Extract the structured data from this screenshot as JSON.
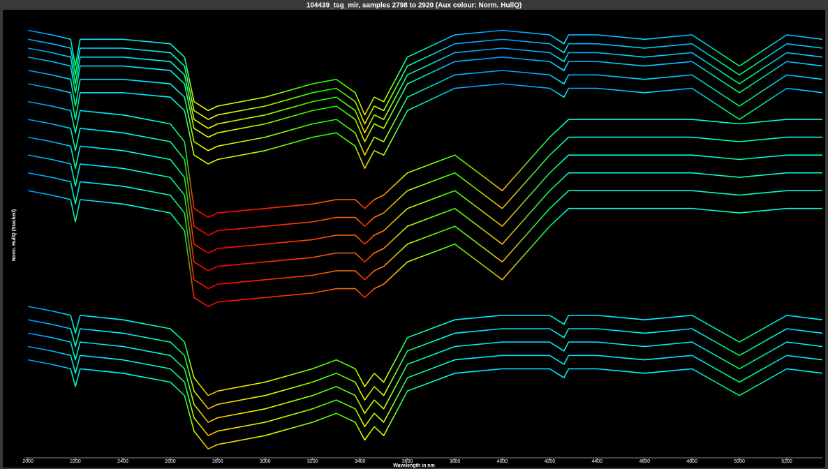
{
  "chart_data": {
    "type": "line",
    "title": "104439_tsg_mir,  samples 2798 to 2920  (Aux colour: Norm. HullQ)",
    "x_label": "Wavelength in nm",
    "y_label": "Norm. HullQ (Stacked)",
    "colormap": "jet",
    "xlim": [
      1985,
      5350
    ],
    "ylim": [
      0,
      100
    ],
    "xticks": [
      2000,
      2200,
      2400,
      2600,
      2800,
      3000,
      3200,
      3400,
      3600,
      3800,
      4000,
      4200,
      4400,
      4600,
      4800,
      5000,
      5200
    ],
    "x": [
      2000,
      2100,
      2180,
      2200,
      2220,
      2400,
      2600,
      2660,
      2700,
      2760,
      2800,
      3000,
      3200,
      3300,
      3380,
      3420,
      3460,
      3500,
      3600,
      3800,
      4000,
      4200,
      4260,
      4280,
      4400,
      4600,
      4800,
      5000,
      5200,
      5350
    ],
    "series": [
      {
        "values": [
          96,
          95,
          94,
          88,
          94,
          94,
          93,
          90,
          80,
          78,
          79,
          81,
          84,
          85,
          82,
          77,
          81,
          80,
          90,
          95,
          96,
          95,
          93,
          95,
          95,
          94,
          95,
          88,
          95,
          94
        ]
      },
      {
        "values": [
          94,
          93,
          92,
          86,
          92,
          92,
          91,
          88,
          78,
          76,
          77,
          79,
          82,
          83,
          80,
          75,
          79,
          78,
          88,
          93,
          94,
          93,
          91,
          93,
          93,
          92,
          93,
          86,
          93,
          92
        ]
      },
      {
        "values": [
          92,
          91,
          90,
          84,
          90,
          90,
          89,
          86,
          76,
          74,
          75,
          77,
          80,
          81,
          78,
          73,
          77,
          76,
          86,
          91,
          92,
          91,
          89,
          91,
          91,
          90,
          91,
          84,
          91,
          90
        ]
      },
      {
        "values": [
          90,
          89,
          88,
          82,
          88,
          88,
          87,
          84,
          74,
          72,
          73,
          75,
          78,
          79,
          76,
          71,
          75,
          74,
          84,
          89,
          90,
          89,
          87,
          89,
          89,
          88,
          89,
          82,
          89,
          88
        ]
      },
      {
        "values": [
          87,
          86,
          85,
          79,
          85,
          85,
          84,
          81,
          71,
          69,
          70,
          72,
          75,
          76,
          73,
          68,
          72,
          71,
          81,
          86,
          87,
          86,
          84,
          86,
          86,
          85,
          86,
          79,
          86,
          85
        ]
      },
      {
        "values": [
          84,
          83,
          82,
          76,
          82,
          82,
          81,
          78,
          68,
          66,
          67,
          69,
          72,
          73,
          70,
          65,
          69,
          68,
          78,
          83,
          84,
          83,
          81,
          83,
          83,
          82,
          83,
          76,
          83,
          82
        ]
      },
      {
        "values": [
          80,
          79,
          78,
          73,
          78,
          77,
          75,
          71,
          56,
          54,
          55,
          56,
          57,
          58,
          58,
          56,
          58,
          59,
          64,
          68,
          60,
          72,
          75,
          76,
          76,
          76,
          76,
          75,
          76,
          76
        ]
      },
      {
        "values": [
          76,
          75,
          74,
          69,
          74,
          73,
          71,
          67,
          52,
          50,
          51,
          52,
          53,
          54,
          54,
          52,
          54,
          55,
          60,
          64,
          56,
          68,
          71,
          72,
          72,
          72,
          72,
          71,
          72,
          72
        ]
      },
      {
        "values": [
          72,
          71,
          70,
          65,
          70,
          69,
          67,
          63,
          48,
          46,
          47,
          48,
          49,
          50,
          50,
          48,
          50,
          51,
          56,
          60,
          52,
          64,
          67,
          68,
          68,
          68,
          68,
          67,
          68,
          68
        ]
      },
      {
        "values": [
          68,
          67,
          66,
          61,
          66,
          65,
          63,
          59,
          44,
          42,
          43,
          44,
          45,
          46,
          46,
          44,
          46,
          47,
          52,
          56,
          48,
          60,
          63,
          64,
          64,
          64,
          64,
          63,
          64,
          64
        ]
      },
      {
        "values": [
          64,
          63,
          62,
          57,
          62,
          61,
          59,
          55,
          40,
          38,
          39,
          40,
          41,
          42,
          42,
          40,
          42,
          43,
          48,
          52,
          44,
          56,
          59,
          60,
          60,
          60,
          60,
          59,
          60,
          60
        ]
      },
      {
        "values": [
          60,
          59,
          58,
          53,
          58,
          57,
          55,
          51,
          36,
          34,
          35,
          36,
          37,
          38,
          38,
          36,
          38,
          39,
          44,
          48,
          40,
          52,
          55,
          56,
          56,
          56,
          56,
          55,
          56,
          56
        ]
      },
      {
        "values": [
          34,
          33,
          32,
          28,
          32,
          31,
          29,
          26,
          18,
          14,
          15,
          17,
          20,
          22,
          20,
          16,
          19,
          17,
          27,
          31,
          32,
          32,
          30,
          32,
          32,
          31,
          32,
          26,
          32,
          31
        ]
      },
      {
        "values": [
          31,
          30,
          29,
          25,
          29,
          28,
          26,
          23,
          15,
          11,
          12,
          14,
          17,
          19,
          17,
          13,
          16,
          14,
          24,
          28,
          29,
          29,
          27,
          29,
          29,
          28,
          29,
          23,
          29,
          28
        ]
      },
      {
        "values": [
          28,
          27,
          26,
          22,
          26,
          25,
          23,
          20,
          12,
          8,
          9,
          11,
          14,
          16,
          14,
          10,
          13,
          11,
          21,
          25,
          26,
          26,
          24,
          26,
          26,
          25,
          26,
          20,
          26,
          25
        ]
      },
      {
        "values": [
          25,
          24,
          23,
          19,
          23,
          22,
          20,
          17,
          9,
          5,
          6,
          8,
          11,
          13,
          11,
          7,
          10,
          8,
          18,
          22,
          23,
          23,
          21,
          23,
          23,
          22,
          23,
          17,
          23,
          22
        ]
      },
      {
        "values": [
          22,
          21,
          20,
          16,
          20,
          19,
          17,
          14,
          6,
          2,
          3,
          5,
          8,
          10,
          8,
          4,
          7,
          5,
          15,
          19,
          20,
          20,
          18,
          20,
          20,
          19,
          20,
          14,
          20,
          19
        ]
      }
    ]
  }
}
